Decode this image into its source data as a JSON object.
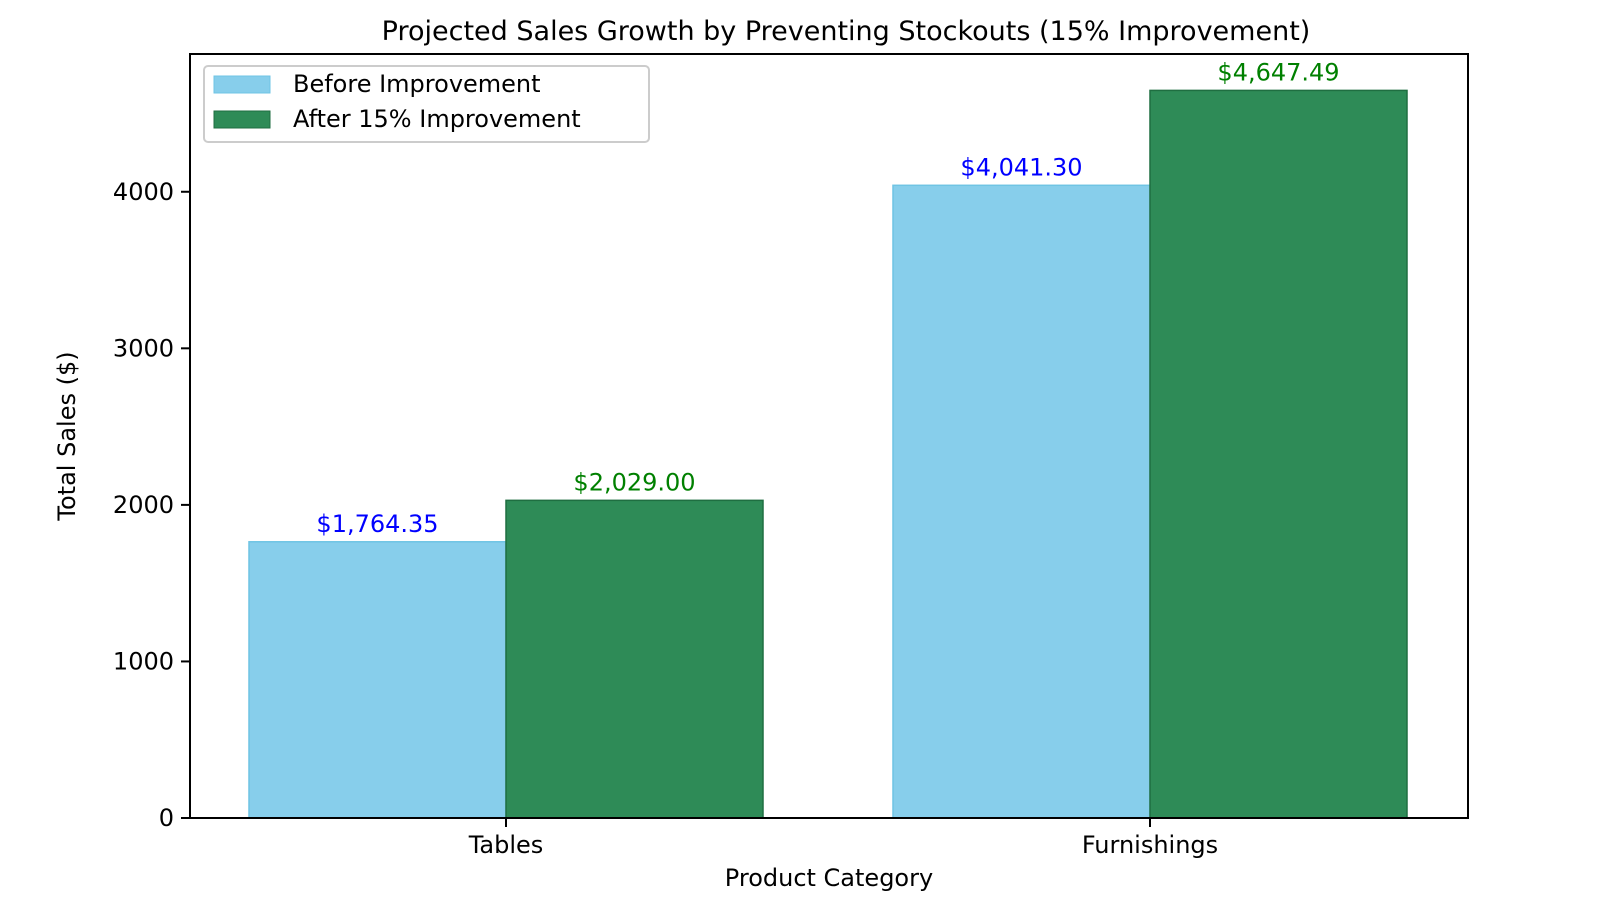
{
  "chart_data": {
    "type": "bar",
    "title": "Projected Sales Growth by Preventing Stockouts (15% Improvement)",
    "xlabel": "Product Category",
    "ylabel": "Total Sales ($)",
    "categories": [
      "Tables",
      "Furnishings"
    ],
    "series": [
      {
        "name": "Before Improvement",
        "color": "#87CEEB",
        "values": [
          1764.35,
          4041.3
        ],
        "data_labels": [
          "$1,764.35",
          "$4,041.30"
        ],
        "label_color": "#0000FF"
      },
      {
        "name": "After 15% Improvement",
        "color": "#2E8B57",
        "values": [
          2029.0,
          4647.49
        ],
        "data_labels": [
          "$2,029.00",
          "$4,647.49"
        ],
        "label_color": "#008000"
      }
    ],
    "ylim": [
      0,
      4880
    ],
    "yticks": [
      0,
      1000,
      2000,
      3000,
      4000
    ],
    "ytick_labels": [
      "0",
      "1000",
      "2000",
      "3000",
      "4000"
    ],
    "grid": false,
    "legend_position": "top-left"
  }
}
